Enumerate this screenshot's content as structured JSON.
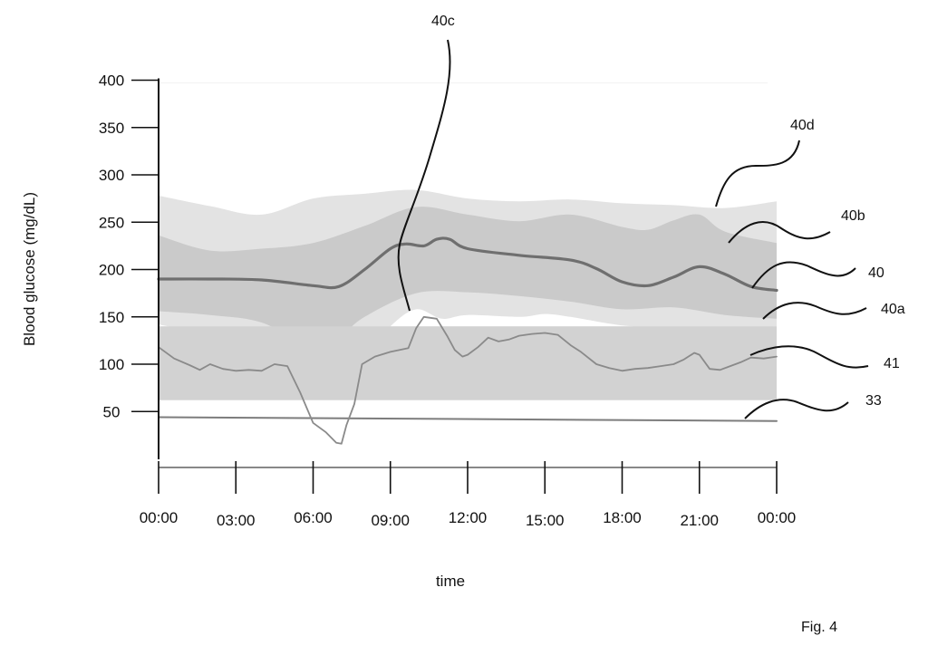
{
  "figure_label": "Fig. 4",
  "chart_data": {
    "type": "line",
    "title": "",
    "xlabel": "time",
    "ylabel": "Blood glucose (mg/dL)",
    "ylim": [
      0,
      400
    ],
    "xlim": [
      0,
      24
    ],
    "grid": false,
    "y_ticks": [
      {
        "value": 50,
        "label": "50"
      },
      {
        "value": 100,
        "label": "100"
      },
      {
        "value": 150,
        "label": "150"
      },
      {
        "value": 200,
        "label": "200"
      },
      {
        "value": 250,
        "label": "250"
      },
      {
        "value": 300,
        "label": "300"
      },
      {
        "value": 350,
        "label": "350"
      },
      {
        "value": 400,
        "label": "400"
      }
    ],
    "x_ticks": [
      {
        "value": 0,
        "label": "00:00"
      },
      {
        "value": 3,
        "label": "03:00"
      },
      {
        "value": 6,
        "label": "06:00"
      },
      {
        "value": 9,
        "label": "09:00"
      },
      {
        "value": 12,
        "label": "12:00"
      },
      {
        "value": 15,
        "label": "15:00"
      },
      {
        "value": 18,
        "label": "18:00"
      },
      {
        "value": 21,
        "label": "21:00"
      },
      {
        "value": 24,
        "label": "00:00"
      }
    ],
    "colors": {
      "outer_band": "#e3e3e3",
      "inner_band": "#c6c6c6",
      "target_band": "#d2d2d2",
      "median_line": "#6f6f6f",
      "cgm_line": "#8a8a8a",
      "threshold_line": "#7d7d7d",
      "axis": "#111111"
    },
    "bands": [
      {
        "ref": "40d",
        "upper": [
          [
            0,
            278
          ],
          [
            2,
            267
          ],
          [
            4,
            258
          ],
          [
            6,
            275
          ],
          [
            8,
            280
          ],
          [
            10,
            284
          ],
          [
            12,
            275
          ],
          [
            14,
            272
          ],
          [
            16,
            274
          ],
          [
            18,
            270
          ],
          [
            20,
            268
          ],
          [
            22,
            265
          ],
          [
            24,
            272
          ]
        ],
        "lower": [
          [
            0,
            142
          ],
          [
            2,
            130
          ],
          [
            4,
            105
          ],
          [
            6,
            85
          ],
          [
            8,
            108
          ],
          [
            9,
            140
          ],
          [
            10,
            158
          ],
          [
            11,
            148
          ],
          [
            12,
            152
          ],
          [
            14,
            150
          ],
          [
            15,
            153
          ],
          [
            16,
            150
          ],
          [
            18,
            141
          ],
          [
            20,
            138
          ],
          [
            22,
            139
          ],
          [
            24,
            140
          ]
        ]
      },
      {
        "ref": "40b",
        "upper": [
          [
            0,
            236
          ],
          [
            2,
            220
          ],
          [
            4,
            222
          ],
          [
            6,
            228
          ],
          [
            8,
            246
          ],
          [
            10,
            266
          ],
          [
            12,
            258
          ],
          [
            14,
            251
          ],
          [
            16,
            258
          ],
          [
            18,
            245
          ],
          [
            19,
            242
          ],
          [
            20,
            252
          ],
          [
            21,
            258
          ],
          [
            22,
            240
          ],
          [
            24,
            228
          ]
        ],
        "lower": [
          [
            0,
            156
          ],
          [
            2,
            152
          ],
          [
            4,
            144
          ],
          [
            6,
            118
          ],
          [
            7,
            128
          ],
          [
            8,
            150
          ],
          [
            10,
            175
          ],
          [
            12,
            176
          ],
          [
            14,
            172
          ],
          [
            16,
            166
          ],
          [
            18,
            158
          ],
          [
            20,
            160
          ],
          [
            22,
            152
          ],
          [
            24,
            148
          ]
        ]
      }
    ],
    "target_range": {
      "ref": "40a",
      "from": 62,
      "to": 140
    },
    "series": [
      {
        "ref": "40",
        "x": [
          0,
          2,
          4,
          6,
          7,
          8,
          9,
          9.6,
          10.3,
          10.8,
          11.3,
          12,
          14,
          16,
          17,
          18,
          19,
          20,
          21,
          22,
          23,
          24
        ],
        "values": [
          190,
          190,
          189,
          183,
          182,
          200,
          222,
          227,
          225,
          232,
          232,
          222,
          215,
          210,
          201,
          187,
          183,
          192,
          203,
          195,
          182,
          178
        ]
      },
      {
        "ref": "41",
        "x": [
          0,
          0.6,
          1.2,
          1.6,
          2,
          2.5,
          3,
          3.5,
          4,
          4.5,
          5,
          5.5,
          6,
          6.5,
          6.9,
          7.1,
          7.3,
          7.6,
          7.9,
          8.4,
          9,
          9.7,
          10,
          10.3,
          10.8,
          11.2,
          11.5,
          11.8,
          12,
          12.4,
          12.8,
          13.2,
          13.6,
          14,
          14.5,
          15,
          15.5,
          16,
          16.4,
          17,
          17.5,
          18,
          18.5,
          19,
          19.5,
          20,
          20.4,
          20.8,
          21,
          21.4,
          21.8,
          22.2,
          22.6,
          23,
          23.5,
          24
        ],
        "values": [
          118,
          106,
          99,
          94,
          100,
          95,
          93,
          94,
          93,
          100,
          98,
          70,
          38,
          28,
          17,
          16,
          36,
          58,
          100,
          108,
          113,
          117,
          138,
          150,
          148,
          130,
          115,
          108,
          110,
          118,
          128,
          124,
          126,
          130,
          132,
          133,
          131,
          120,
          113,
          100,
          96,
          93,
          95,
          96,
          98,
          100,
          105,
          112,
          110,
          95,
          94,
          98,
          102,
          107,
          106,
          108
        ]
      },
      {
        "ref": "33",
        "x": [
          0,
          24
        ],
        "values": [
          44,
          40
        ]
      }
    ],
    "annotations": [
      {
        "label": "40c",
        "target": "09:00–12:00 band gap"
      },
      {
        "label": "40d",
        "target": "outer band"
      },
      {
        "label": "40b",
        "target": "inner band"
      },
      {
        "label": "40",
        "target": "median curve"
      },
      {
        "label": "40a",
        "target": "target range"
      },
      {
        "label": "41",
        "target": "glucose trace"
      },
      {
        "label": "33",
        "target": "threshold line"
      }
    ]
  }
}
